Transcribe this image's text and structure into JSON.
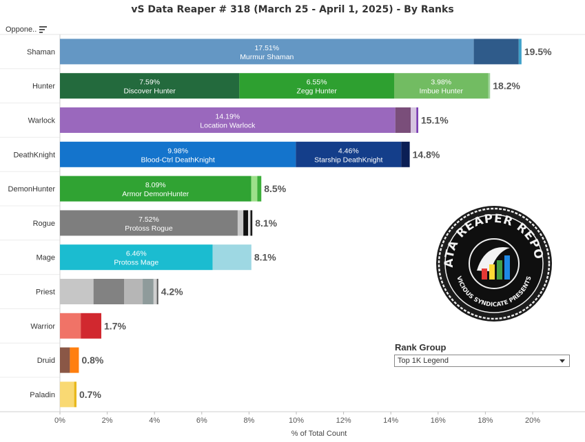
{
  "title": "vS Data Reaper #  318 (March 25 - April 1, 2025) - By Ranks",
  "header": {
    "column_label": "Oppone.."
  },
  "rank_group": {
    "label": "Rank Group",
    "selected": "Top 1K Legend"
  },
  "logo": {
    "top_text": "DATA REAPER REPORT",
    "bottom_text": "VICIOUS SYNDICATE PRESENTS"
  },
  "chart_data": {
    "type": "bar",
    "orientation": "horizontal",
    "stacked": true,
    "xlabel": "% of Total Count",
    "xlim": [
      0,
      22
    ],
    "xticks": [
      "0%",
      "2%",
      "4%",
      "6%",
      "8%",
      "10%",
      "12%",
      "14%",
      "16%",
      "18%",
      "20%"
    ],
    "categories": [
      "Shaman",
      "Hunter",
      "Warlock",
      "DeathKnight",
      "DemonHunter",
      "Rogue",
      "Mage",
      "Priest",
      "Warrior",
      "Druid",
      "Paladin"
    ],
    "totals": [
      "19.5%",
      "18.2%",
      "15.1%",
      "14.8%",
      "8.5%",
      "8.1%",
      "8.1%",
      "4.2%",
      "1.7%",
      "0.8%",
      "0.7%"
    ],
    "bars": [
      {
        "class": "Shaman",
        "segments": [
          {
            "value": 17.51,
            "label": "17.51%",
            "name": "Murmur Shaman",
            "color": "#6497c4"
          },
          {
            "value": 1.9,
            "color": "#2f5b8a"
          },
          {
            "value": 0.12,
            "color": "#3fa1c9"
          }
        ]
      },
      {
        "class": "Hunter",
        "segments": [
          {
            "value": 7.59,
            "label": "7.59%",
            "name": "Discover Hunter",
            "color": "#236a3d"
          },
          {
            "value": 6.55,
            "label": "6.55%",
            "name": "Zegg Hunter",
            "color": "#2ea030"
          },
          {
            "value": 3.98,
            "label": "3.98%",
            "name": "Imbue Hunter",
            "color": "#72bc62"
          },
          {
            "value": 0.08,
            "color": "#9fd49a"
          }
        ]
      },
      {
        "class": "Warlock",
        "segments": [
          {
            "value": 14.19,
            "label": "14.19%",
            "name": "Location Warlock",
            "color": "#9a68bd"
          },
          {
            "value": 0.65,
            "color": "#7a4e7a"
          },
          {
            "value": 0.24,
            "color": "#d6c4e0"
          },
          {
            "value": 0.08,
            "color": "#7b3fb3"
          }
        ]
      },
      {
        "class": "DeathKnight",
        "segments": [
          {
            "value": 9.98,
            "label": "9.98%",
            "name": "Blood-Ctrl DeathKnight",
            "color": "#1474cc"
          },
          {
            "value": 4.46,
            "label": "4.46%",
            "name": "Starship DeathKnight",
            "color": "#143e8a"
          },
          {
            "value": 0.36,
            "color": "#0b1f55"
          }
        ]
      },
      {
        "class": "DemonHunter",
        "segments": [
          {
            "value": 8.09,
            "label": "8.09%",
            "name": "Armor DemonHunter",
            "color": "#30a333"
          },
          {
            "value": 0.26,
            "color": "#9de08a"
          },
          {
            "value": 0.17,
            "color": "#3caf3a"
          }
        ]
      },
      {
        "class": "Rogue",
        "segments": [
          {
            "value": 7.52,
            "label": "7.52%",
            "name": "Protoss Rogue",
            "color": "#7e7e7e"
          },
          {
            "value": 0.24,
            "color": "#c9c9c9"
          },
          {
            "value": 0.2,
            "color": "#111111"
          },
          {
            "value": 0.1,
            "color": "#e0e0e0"
          },
          {
            "value": 0.08,
            "color": "#1a1a1a"
          }
        ]
      },
      {
        "class": "Mage",
        "segments": [
          {
            "value": 6.46,
            "label": "6.46%",
            "name": "Protoss Mage",
            "color": "#1bbcd0"
          },
          {
            "value": 1.64,
            "color": "#9ed8e3"
          }
        ]
      },
      {
        "class": "Priest",
        "segments": [
          {
            "value": 1.42,
            "color": "#c6c6c6"
          },
          {
            "value": 1.3,
            "color": "#828282"
          },
          {
            "value": 0.78,
            "color": "#b6b6b6"
          },
          {
            "value": 0.46,
            "color": "#8f9b9b"
          },
          {
            "value": 0.14,
            "color": "#cfcfcf"
          },
          {
            "value": 0.06,
            "color": "#555555"
          }
        ]
      },
      {
        "class": "Warrior",
        "segments": [
          {
            "value": 0.88,
            "color": "#f07367"
          },
          {
            "value": 0.87,
            "color": "#d1282f"
          }
        ]
      },
      {
        "class": "Druid",
        "segments": [
          {
            "value": 0.42,
            "color": "#8a5746"
          },
          {
            "value": 0.38,
            "color": "#ff7f0f"
          }
        ]
      },
      {
        "class": "Paladin",
        "segments": [
          {
            "value": 0.6,
            "color": "#f9d973"
          },
          {
            "value": 0.1,
            "color": "#e8b81c"
          }
        ]
      }
    ]
  }
}
